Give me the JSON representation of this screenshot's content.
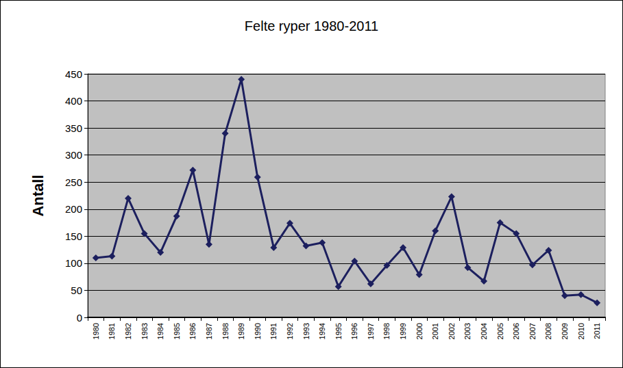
{
  "chart_data": {
    "type": "line",
    "title": "Felte ryper 1980-2011",
    "y_label": "Antall",
    "categories": [
      "1980",
      "1981",
      "1982",
      "1983",
      "1984",
      "1985",
      "1986",
      "1987",
      "1988",
      "1989",
      "1990",
      "1991",
      "1992",
      "1993",
      "1994",
      "1995",
      "1996",
      "1997",
      "1998",
      "1999",
      "2000",
      "2001",
      "2002",
      "2003",
      "2004",
      "2005",
      "2006",
      "2007",
      "2008",
      "2009",
      "2010",
      "2011"
    ],
    "values": [
      110,
      113,
      220,
      155,
      120,
      187,
      272,
      135,
      340,
      440,
      259,
      129,
      174,
      132,
      138,
      57,
      104,
      62,
      96,
      129,
      79,
      160,
      223,
      92,
      67,
      175,
      155,
      97,
      124,
      40,
      42,
      27
    ],
    "color": "#1c1f5e",
    "marker": "diamond",
    "line_style": "solid",
    "ylim": [
      0,
      450
    ],
    "yticks": [
      0,
      50,
      100,
      150,
      200,
      250,
      300,
      350,
      400,
      450
    ],
    "grid": true
  }
}
